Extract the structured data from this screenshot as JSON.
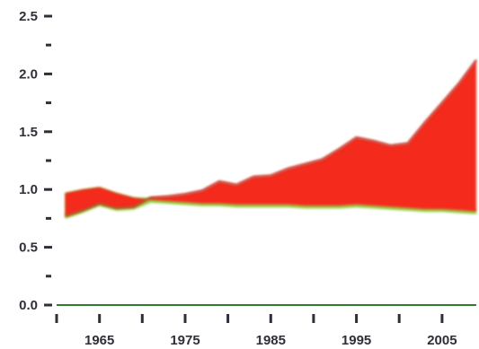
{
  "chart_data": {
    "type": "area",
    "title": "",
    "xlabel": "",
    "ylabel": "",
    "xlim": [
      1960,
      2009
    ],
    "ylim": [
      0,
      2.5
    ],
    "grid": false,
    "legend": "none",
    "x_ticks": [
      1960,
      1965,
      1970,
      1975,
      1980,
      1985,
      1990,
      1995,
      2000,
      2005
    ],
    "x_tick_labels": [
      {
        "x": 1965,
        "label": "1965"
      },
      {
        "x": 1975,
        "label": "1975"
      },
      {
        "x": 1985,
        "label": "1985"
      },
      {
        "x": 1995,
        "label": "1995"
      },
      {
        "x": 2005,
        "label": "2005"
      }
    ],
    "y_ticks": [
      0,
      0.25,
      0.5,
      0.75,
      1.0,
      1.25,
      1.5,
      1.75,
      2.0,
      2.25,
      2.5
    ],
    "y_tick_labels": [
      {
        "y": 0.0,
        "label": "0.0"
      },
      {
        "y": 0.5,
        "label": "0.5"
      },
      {
        "y": 1.0,
        "label": "1.0"
      },
      {
        "y": 1.5,
        "label": "1.5"
      },
      {
        "y": 2.0,
        "label": "2.0"
      },
      {
        "y": 2.5,
        "label": "2.5"
      }
    ],
    "x": [
      1961,
      1963,
      1965,
      1967,
      1969,
      1971,
      1973,
      1975,
      1977,
      1979,
      1981,
      1983,
      1985,
      1987,
      1989,
      1991,
      1993,
      1995,
      1997,
      1999,
      2001,
      2003,
      2005,
      2007,
      2009
    ],
    "series": [
      {
        "values": [
          0.77,
          0.82,
          0.88,
          0.84,
          0.85,
          0.93,
          0.94,
          0.96,
          0.99,
          1.07,
          1.04,
          1.11,
          1.12,
          1.18,
          1.22,
          1.26,
          1.35,
          1.45,
          1.42,
          1.38,
          1.4,
          1.58,
          1.75,
          1.92,
          2.12
        ],
        "color": "#f32a1e"
      },
      {
        "values": [
          0.97,
          1.0,
          1.02,
          0.97,
          0.93,
          0.91,
          0.9,
          0.89,
          0.88,
          0.88,
          0.87,
          0.87,
          0.87,
          0.87,
          0.86,
          0.86,
          0.86,
          0.87,
          0.86,
          0.85,
          0.84,
          0.83,
          0.83,
          0.82,
          0.81
        ],
        "color": "#8fcc3a"
      }
    ],
    "baseline_color": "#2e7d32"
  }
}
